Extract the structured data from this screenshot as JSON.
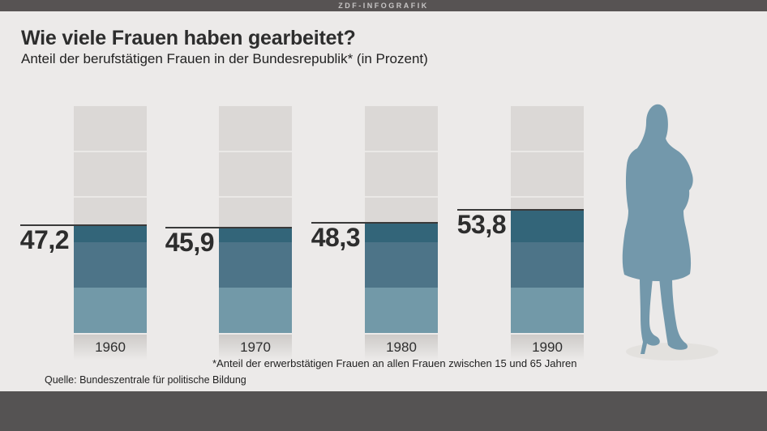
{
  "header": {
    "badge": "ZDF-INFOGRAFIK"
  },
  "title": "Wie viele Frauen haben gearbeitet?",
  "subtitle": "Anteil der berufstätigen Frauen in der Bundesrepublik* (in Prozent)",
  "footnote": "*Anteil der erwerbstätigen Frauen an allen Frauen zwischen 15 und 65 Jahren",
  "source": "Quelle: Bundeszentrale für politische Bildung",
  "illustration": {
    "name": "woman-silhouette"
  },
  "colors": {
    "background": "#ECEAE9",
    "top_bar": "#575353",
    "bottom_bar": "#555353",
    "bar_gray": "#DBD8D6",
    "gray_divider": "#EAE8E6",
    "band_dark": "#336579",
    "band_mid": "#4D7488",
    "band_light": "#7299A8",
    "silhouette": "#7398AB",
    "value_line": "#3A3A3A",
    "text_dark": "#2D2D2D"
  },
  "chart_data": {
    "type": "bar",
    "title": "Wie viele Frauen haben gearbeitet?",
    "subtitle": "Anteil der berufstätigen Frauen in der Bundesrepublik* (in Prozent)",
    "categories": [
      "1960",
      "1970",
      "1980",
      "1990"
    ],
    "values": [
      47.2,
      45.9,
      48.3,
      53.8
    ],
    "value_labels": [
      "47,2",
      "45,9",
      "48,3",
      "53,8"
    ],
    "unit": "Prozent",
    "xlabel": "",
    "ylabel": "",
    "ylim": [
      0,
      100
    ],
    "gridline_interval": 20,
    "grid": true,
    "legend": "none"
  }
}
